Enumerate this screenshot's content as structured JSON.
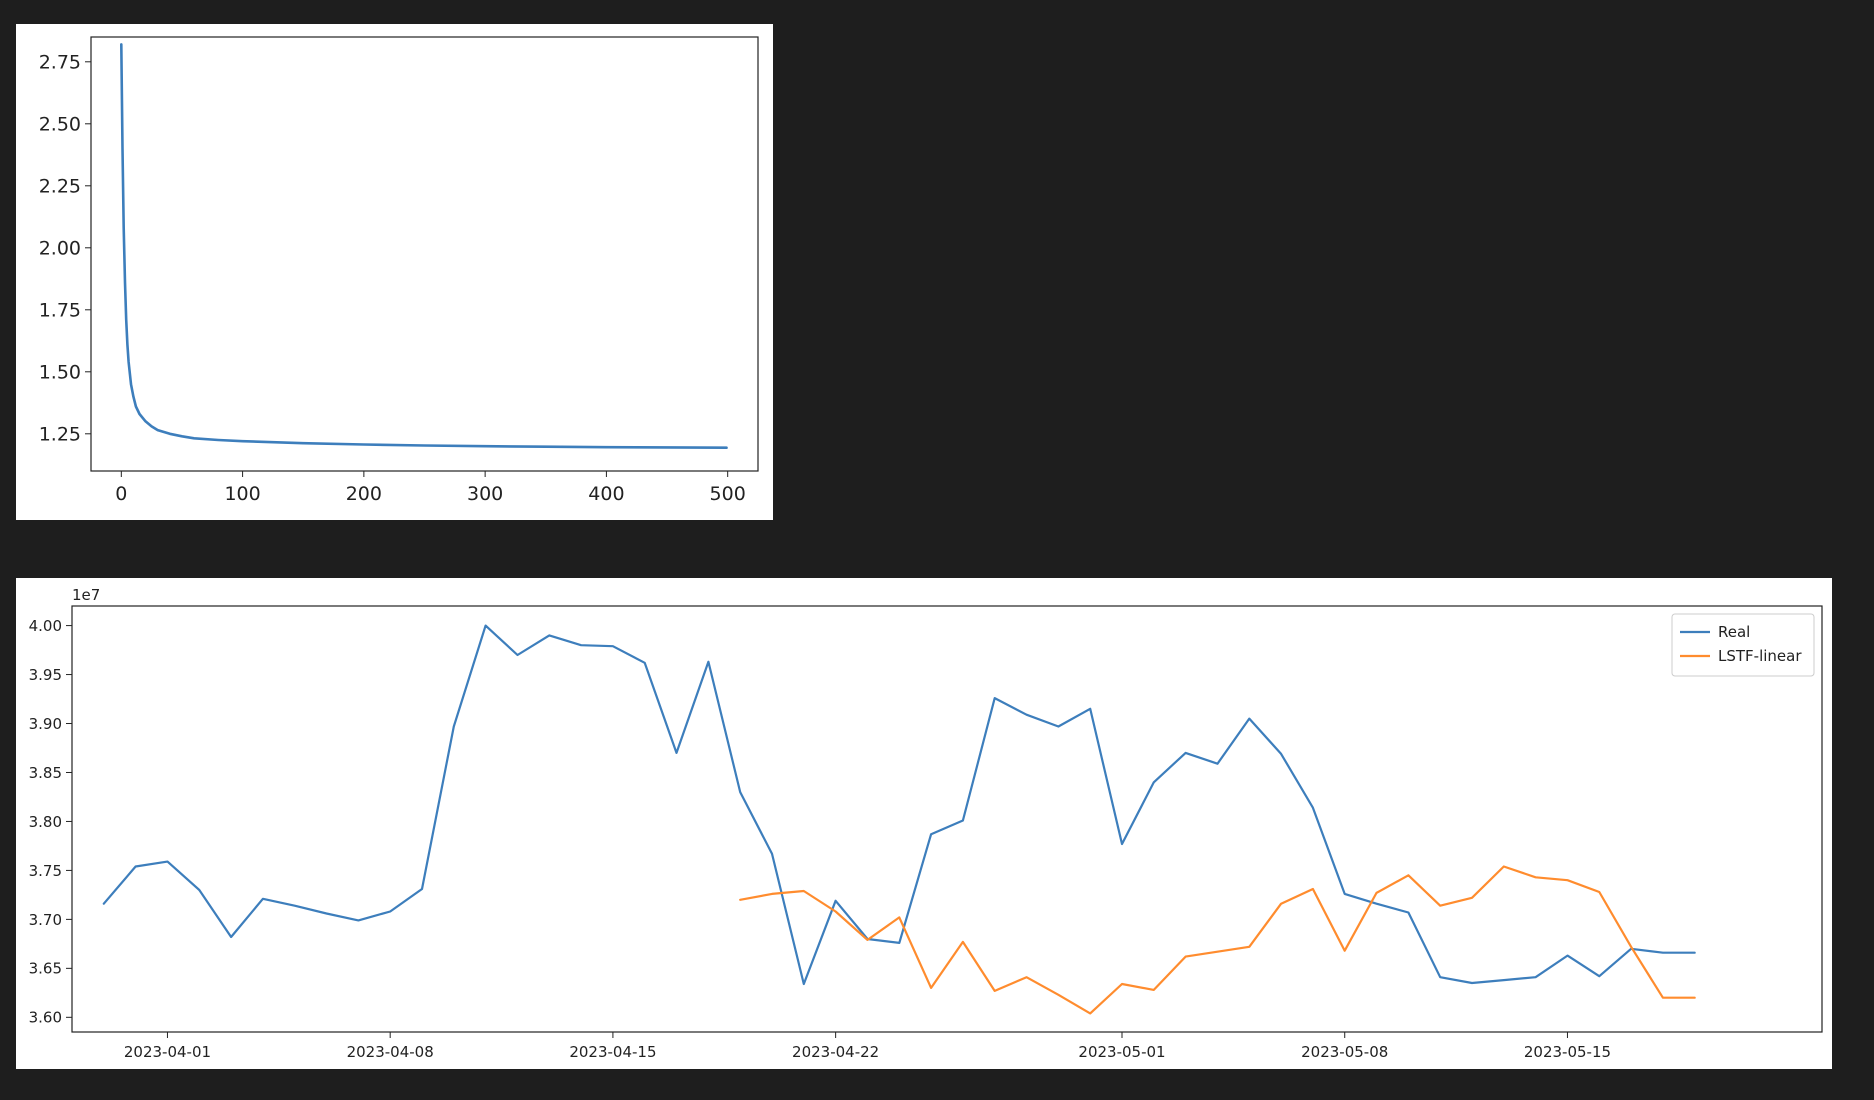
{
  "chart_data": [
    {
      "type": "line",
      "title": "",
      "xlabel": "",
      "ylabel": "",
      "xlim": [
        -25,
        525
      ],
      "ylim": [
        1.1,
        2.85
      ],
      "xticks": [
        0,
        100,
        200,
        300,
        400,
        500
      ],
      "xtick_labels": [
        "0",
        "100",
        "200",
        "300",
        "400",
        "500"
      ],
      "yticks": [
        1.25,
        1.5,
        1.75,
        2.0,
        2.25,
        2.5,
        2.75
      ],
      "ytick_labels": [
        "1.25",
        "1.50",
        "1.75",
        "2.00",
        "2.25",
        "2.50",
        "2.75"
      ],
      "grid": false,
      "legend": null,
      "series": [
        {
          "color": "#3d7ebc",
          "x": [
            0,
            1,
            2,
            3,
            4,
            5,
            6,
            8,
            10,
            12,
            15,
            20,
            25,
            30,
            40,
            50,
            60,
            80,
            100,
            150,
            200,
            250,
            300,
            350,
            400,
            450,
            499
          ],
          "y": [
            2.82,
            2.4,
            2.08,
            1.86,
            1.71,
            1.61,
            1.54,
            1.45,
            1.4,
            1.36,
            1.33,
            1.3,
            1.28,
            1.265,
            1.25,
            1.24,
            1.232,
            1.225,
            1.22,
            1.212,
            1.207,
            1.203,
            1.2,
            1.198,
            1.196,
            1.195,
            1.194
          ]
        }
      ]
    },
    {
      "type": "line",
      "title": "",
      "xlabel": "",
      "ylabel": "",
      "y_offset_label": "1e7",
      "ylim": [
        3.585,
        4.02
      ],
      "xlim": [
        "2023-03-29",
        "2023-05-23"
      ],
      "xticks": [
        "2023-04-01",
        "2023-04-08",
        "2023-04-15",
        "2023-04-22",
        "2023-05-01",
        "2023-05-08",
        "2023-05-15"
      ],
      "xtick_labels": [
        "2023-04-01",
        "2023-04-08",
        "2023-04-15",
        "2023-04-22",
        "2023-05-01",
        "2023-05-08",
        "2023-05-15"
      ],
      "yticks": [
        3.6,
        3.65,
        3.7,
        3.75,
        3.8,
        3.85,
        3.9,
        3.95,
        4.0
      ],
      "ytick_labels": [
        "3.60",
        "3.65",
        "3.70",
        "3.75",
        "3.80",
        "3.85",
        "3.90",
        "3.95",
        "4.00"
      ],
      "grid": false,
      "legend": "top-right",
      "series": [
        {
          "name": "Real",
          "color": "#3d7ebc",
          "x": [
            "2023-03-30",
            "2023-03-31",
            "2023-04-01",
            "2023-04-02",
            "2023-04-03",
            "2023-04-04",
            "2023-04-05",
            "2023-04-06",
            "2023-04-07",
            "2023-04-08",
            "2023-04-09",
            "2023-04-10",
            "2023-04-11",
            "2023-04-12",
            "2023-04-13",
            "2023-04-14",
            "2023-04-15",
            "2023-04-16",
            "2023-04-17",
            "2023-04-18",
            "2023-04-19",
            "2023-04-20",
            "2023-04-21",
            "2023-04-22",
            "2023-04-23",
            "2023-04-24",
            "2023-04-25",
            "2023-04-26",
            "2023-04-27",
            "2023-04-28",
            "2023-04-29",
            "2023-04-30",
            "2023-05-01",
            "2023-05-02",
            "2023-05-03",
            "2023-05-04",
            "2023-05-05",
            "2023-05-06",
            "2023-05-07",
            "2023-05-08",
            "2023-05-09",
            "2023-05-10",
            "2023-05-11",
            "2023-05-12",
            "2023-05-13",
            "2023-05-14",
            "2023-05-15",
            "2023-05-16",
            "2023-05-17",
            "2023-05-18",
            "2023-05-19"
          ],
          "y": [
            3.716,
            3.754,
            3.759,
            3.73,
            3.682,
            3.721,
            3.714,
            3.706,
            3.699,
            3.708,
            3.731,
            3.897,
            4.0,
            3.97,
            3.99,
            3.98,
            3.979,
            3.962,
            3.87,
            3.963,
            3.83,
            3.767,
            3.634,
            3.719,
            3.68,
            3.676,
            3.787,
            3.801,
            3.926,
            3.909,
            3.897,
            3.915,
            3.777,
            3.84,
            3.87,
            3.859,
            3.905,
            3.869,
            3.814,
            3.726,
            3.716,
            3.707,
            3.641,
            3.635,
            3.638,
            3.641,
            3.663,
            3.642,
            3.67,
            3.666,
            3.666
          ]
        },
        {
          "name": "LSTF-linear",
          "color": "#ff8c2e",
          "x": [
            "2023-04-19",
            "2023-04-20",
            "2023-04-21",
            "2023-04-22",
            "2023-04-23",
            "2023-04-24",
            "2023-04-25",
            "2023-04-26",
            "2023-04-27",
            "2023-04-28",
            "2023-04-29",
            "2023-04-30",
            "2023-05-01",
            "2023-05-02",
            "2023-05-03",
            "2023-05-04",
            "2023-05-05",
            "2023-05-06",
            "2023-05-07",
            "2023-05-08",
            "2023-05-09",
            "2023-05-10",
            "2023-05-11",
            "2023-05-12",
            "2023-05-13",
            "2023-05-14",
            "2023-05-15",
            "2023-05-16",
            "2023-05-17",
            "2023-05-18",
            "2023-05-19"
          ],
          "y": [
            3.72,
            3.726,
            3.729,
            3.708,
            3.679,
            3.702,
            3.63,
            3.677,
            3.627,
            3.641,
            3.623,
            3.604,
            3.634,
            3.628,
            3.662,
            3.667,
            3.672,
            3.716,
            3.731,
            3.668,
            3.727,
            3.745,
            3.714,
            3.722,
            3.754,
            3.743,
            3.74,
            3.728,
            3.672,
            3.62,
            3.62
          ]
        }
      ]
    }
  ]
}
